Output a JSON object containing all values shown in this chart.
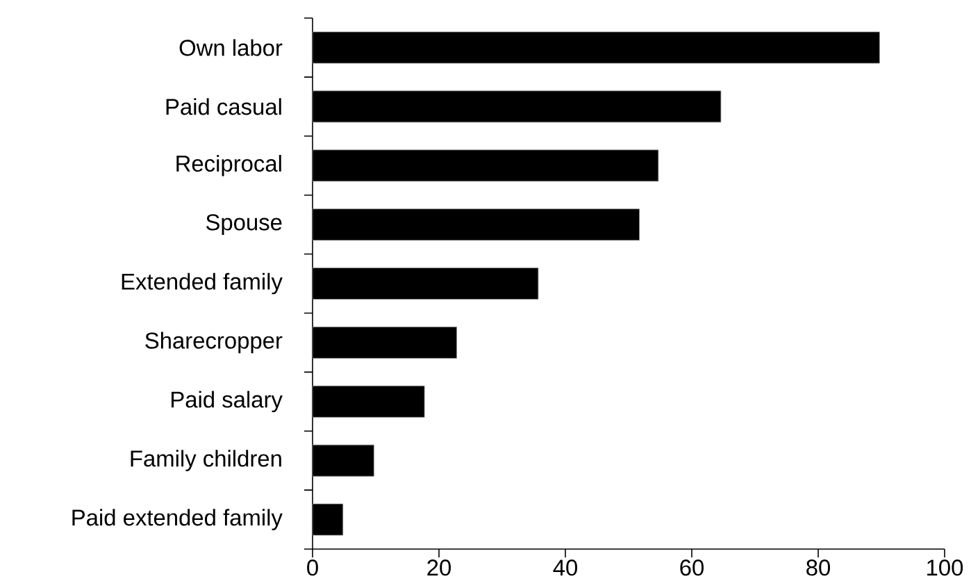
{
  "chart_data": {
    "type": "bar",
    "orientation": "horizontal",
    "categories": [
      "Own labor",
      "Paid casual",
      "Reciprocal",
      "Spouse",
      "Extended family",
      "Sharecropper",
      "Paid salary",
      "Family children",
      "Paid extended family"
    ],
    "values": [
      89.7,
      64.6,
      54.7,
      51.7,
      35.7,
      22.8,
      17.7,
      9.7,
      4.8
    ],
    "color": "#000000",
    "xlim": [
      0,
      100
    ],
    "xticks": [
      0,
      20,
      40,
      60,
      80,
      100
    ]
  }
}
